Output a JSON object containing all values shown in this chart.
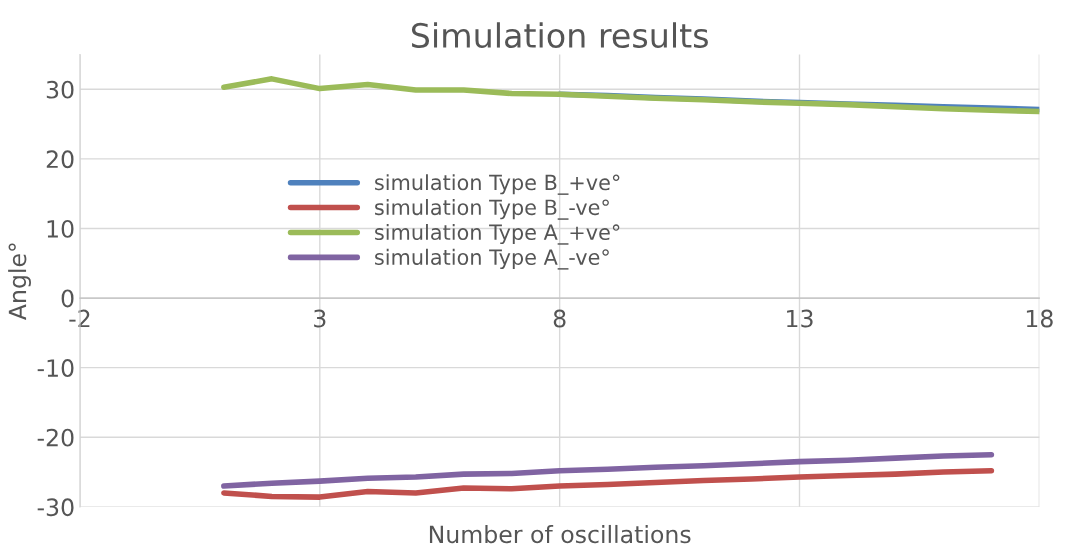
{
  "chart_data": {
    "type": "line",
    "title": "Simulation results",
    "xlabel": "Number of oscillations",
    "ylabel": "Angle°",
    "xlim": [
      -2,
      18
    ],
    "xticks": [
      -2,
      3,
      8,
      13,
      18
    ],
    "ylim": [
      -30,
      35
    ],
    "yticks": [
      -30,
      -20,
      -10,
      0,
      10,
      20,
      30
    ],
    "grid": true,
    "legend": "center left",
    "line_style": "solid",
    "marker": "none",
    "series": [
      {
        "name": "simulation Type B_+ve°",
        "color": "#4f81bd",
        "x": [
          8,
          9,
          10,
          11,
          12,
          13,
          14,
          15,
          16,
          17,
          18
        ],
        "values": [
          29.3,
          29.1,
          28.8,
          28.6,
          28.3,
          28.1,
          27.9,
          27.7,
          27.5,
          27.3,
          27.1
        ]
      },
      {
        "name": "simulation Type B_-ve°",
        "color": "#c0504d",
        "x": [
          1,
          2,
          3,
          4,
          5,
          6,
          7,
          8,
          9,
          10,
          11,
          12,
          13,
          14,
          15,
          16,
          17
        ],
        "values": [
          -28.0,
          -28.5,
          -28.6,
          -27.8,
          -28.0,
          -27.3,
          -27.4,
          -27.0,
          -26.8,
          -26.5,
          -26.2,
          -26.0,
          -25.7,
          -25.5,
          -25.3,
          -25.0,
          -24.8
        ]
      },
      {
        "name": "simulation Type A_+ve°",
        "color": "#9bbb59",
        "x": [
          1,
          2,
          3,
          4,
          5,
          6,
          7,
          8,
          9,
          10,
          11,
          12,
          13,
          14,
          15,
          16,
          17,
          18
        ],
        "values": [
          30.3,
          31.5,
          30.1,
          30.7,
          29.9,
          29.9,
          29.4,
          29.3,
          29.0,
          28.7,
          28.5,
          28.2,
          28.0,
          27.8,
          27.5,
          27.2,
          27.0,
          26.8
        ]
      },
      {
        "name": "simulation Type A_-ve°",
        "color": "#8064a2",
        "x": [
          1,
          2,
          3,
          4,
          5,
          6,
          7,
          8,
          9,
          10,
          11,
          12,
          13,
          14,
          15,
          16,
          17
        ],
        "values": [
          -27.0,
          -26.6,
          -26.3,
          -25.9,
          -25.7,
          -25.3,
          -25.2,
          -24.8,
          -24.6,
          -24.3,
          -24.1,
          -23.8,
          -23.5,
          -23.3,
          -23.0,
          -22.7,
          -22.5
        ]
      }
    ]
  }
}
